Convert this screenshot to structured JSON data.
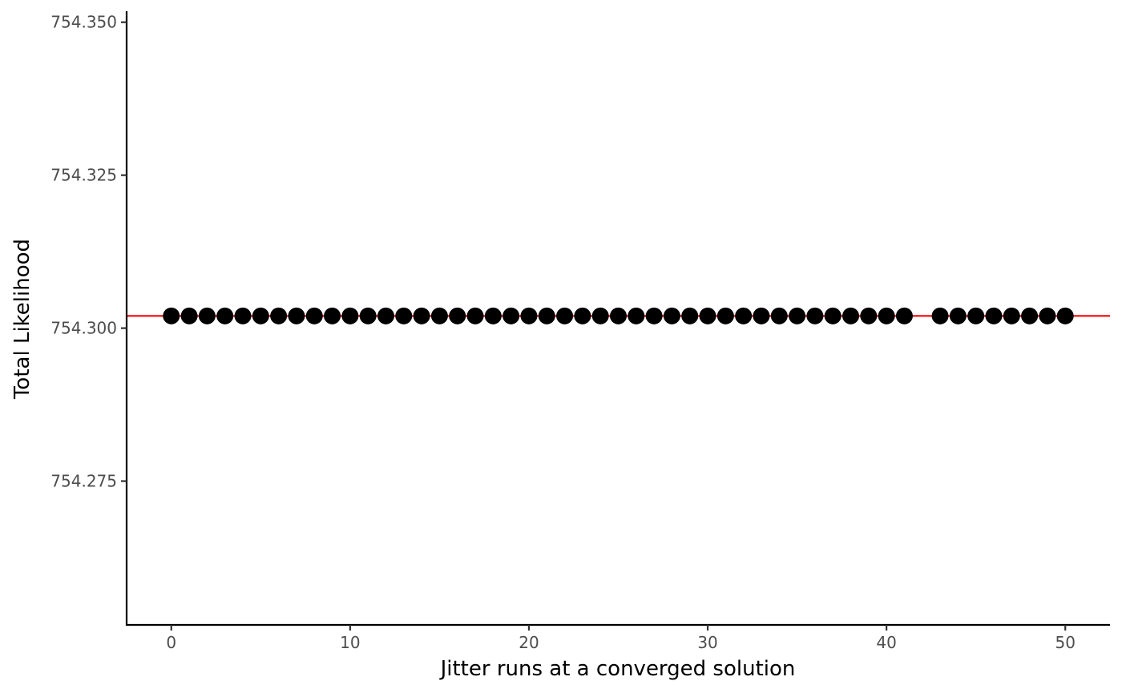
{
  "chart_data": {
    "type": "scatter",
    "title": "",
    "xlabel": "Jitter runs at a converged solution",
    "ylabel": "Total Likelihood",
    "xlim": [
      -2.5,
      52.5
    ],
    "ylim": [
      754.2515,
      754.3518
    ],
    "x_ticks": [
      0,
      10,
      20,
      30,
      40,
      50
    ],
    "x_tick_labels": [
      "0",
      "10",
      "20",
      "30",
      "40",
      "50"
    ],
    "y_ticks": [
      754.275,
      754.3,
      754.325,
      754.35
    ],
    "y_tick_labels": [
      "754.275",
      "754.300",
      "754.325",
      "754.350"
    ],
    "grid": false,
    "legend": "none",
    "reference_line": {
      "y": 754.302,
      "color": "#ff0000"
    },
    "point_color": "#000000",
    "x": [
      0,
      1,
      2,
      3,
      4,
      5,
      6,
      7,
      8,
      9,
      10,
      11,
      12,
      13,
      14,
      15,
      16,
      17,
      18,
      19,
      20,
      21,
      22,
      23,
      24,
      25,
      26,
      27,
      28,
      29,
      30,
      31,
      32,
      33,
      34,
      35,
      36,
      37,
      38,
      39,
      40,
      41,
      43,
      44,
      45,
      46,
      47,
      48,
      49,
      50
    ],
    "y": [
      754.302,
      754.302,
      754.302,
      754.302,
      754.302,
      754.302,
      754.302,
      754.302,
      754.302,
      754.302,
      754.302,
      754.302,
      754.302,
      754.302,
      754.302,
      754.302,
      754.302,
      754.302,
      754.302,
      754.302,
      754.302,
      754.302,
      754.302,
      754.302,
      754.302,
      754.302,
      754.302,
      754.302,
      754.302,
      754.302,
      754.302,
      754.302,
      754.302,
      754.302,
      754.302,
      754.302,
      754.302,
      754.302,
      754.302,
      754.302,
      754.302,
      754.302,
      754.302,
      754.302,
      754.302,
      754.302,
      754.302,
      754.302,
      754.302,
      754.302
    ]
  }
}
